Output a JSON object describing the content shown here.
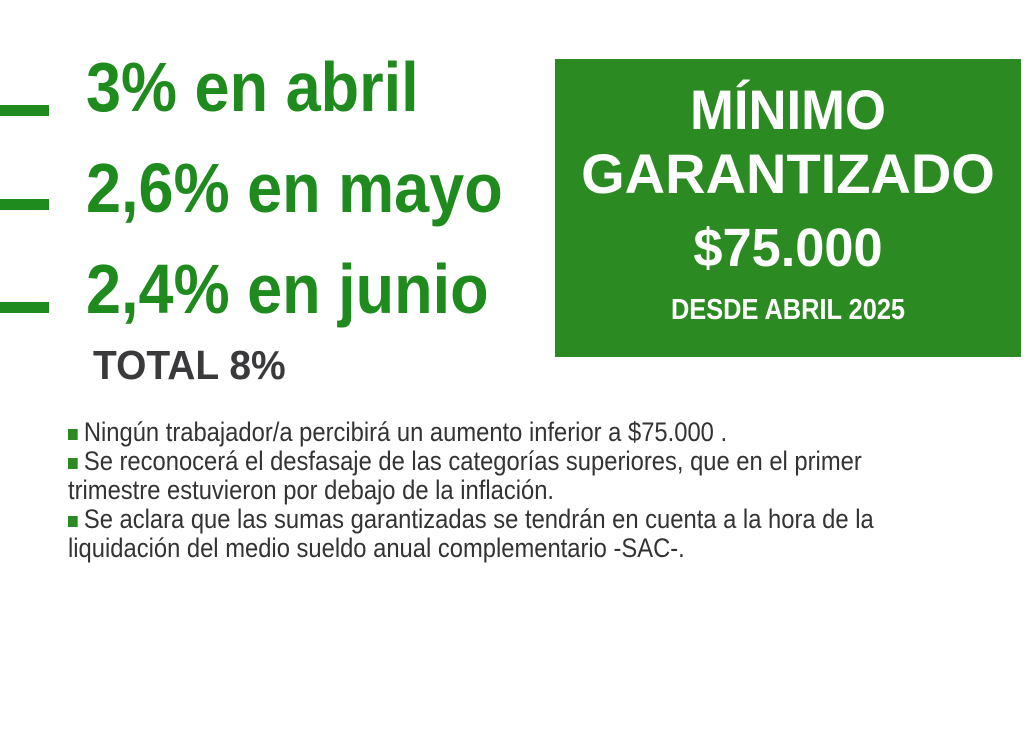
{
  "palette": {
    "headline_green": "#1f8b1f",
    "box_green": "#2b8a22",
    "bullet_green": "#2b8a22",
    "body_text": "#333333",
    "total_text": "#3a3a3c",
    "box_text": "#ffffff",
    "background": "#ffffff"
  },
  "icons": {
    "dash_marker": "horizontal-dash",
    "note_bullet": "green-square"
  },
  "increases": {
    "items": [
      {
        "label": "3% en abril"
      },
      {
        "label": "2,6% en mayo"
      },
      {
        "label": "2,4% en junio"
      }
    ],
    "total_label": "TOTAL 8%"
  },
  "guarantee_box": {
    "title_line1": "MÍNIMO",
    "title_line2": "GARANTIZADO",
    "amount": "$75.000",
    "since": "DESDE ABRIL 2025"
  },
  "notes": [
    {
      "lines": [
        "Ningún trabajador/a percibirá un aumento inferior a $75.000 ."
      ]
    },
    {
      "lines": [
        "Se reconocerá el desfasaje de las categorías superiores, que en el primer",
        "trimestre estuvieron por debajo de la inflación."
      ]
    },
    {
      "lines": [
        "Se aclara que las sumas garantizadas se tendrán en cuenta a la hora de la",
        "liquidación del medio sueldo anual complementario -SAC-."
      ]
    }
  ]
}
